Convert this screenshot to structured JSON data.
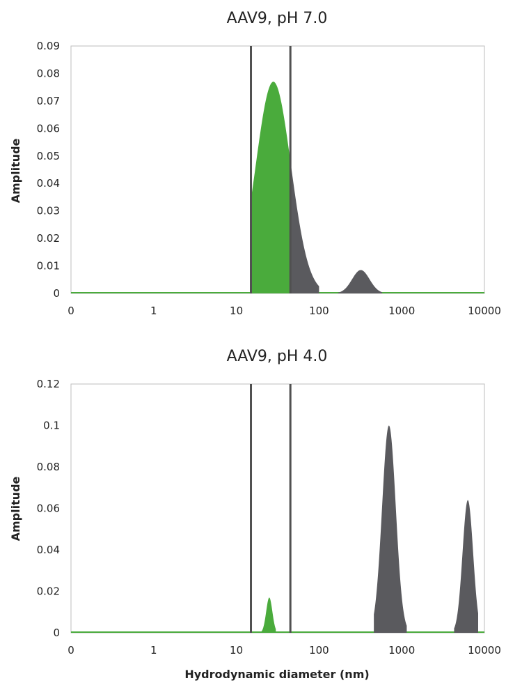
{
  "colors": {
    "green": "#4aab3c",
    "gray": "#5a5a5e",
    "axis": "#bdbdbd",
    "divider": "#505050"
  },
  "chart_data": [
    {
      "type": "area",
      "title": "AAV9, pH 7.0",
      "ylabel": "Amplitude",
      "xlabel": "",
      "x_scale": "log",
      "xlim": [
        0.1,
        10000
      ],
      "x_ticks": [
        "0",
        "1",
        "10",
        "100",
        "1000",
        "10000"
      ],
      "ylim": [
        0,
        0.09
      ],
      "y_ticks": [
        "0",
        "0.01",
        "0.02",
        "0.03",
        "0.04",
        "0.05",
        "0.06",
        "0.07",
        "0.08",
        "0.09"
      ],
      "grid": false,
      "vertical_lines_x": [
        15,
        45
      ],
      "peaks": [
        {
          "color": "green",
          "center": 28,
          "amplitude": 0.077,
          "range": [
            15,
            45
          ]
        },
        {
          "color": "gray",
          "center": 28,
          "amplitude": 0.077,
          "range": [
            45,
            100
          ]
        },
        {
          "color": "gray",
          "center": 320,
          "amplitude": 0.0085,
          "range": [
            170,
            580
          ]
        }
      ]
    },
    {
      "type": "area",
      "title": "AAV9, pH 4.0",
      "ylabel": "Amplitude",
      "xlabel": "Hydrodynamic diameter (nm)",
      "x_scale": "log",
      "xlim": [
        0.1,
        10000
      ],
      "x_ticks": [
        "0",
        "1",
        "10",
        "100",
        "1000",
        "10000"
      ],
      "ylim": [
        0,
        0.12
      ],
      "y_ticks": [
        "0",
        "0.02",
        "0.04",
        "0.06",
        "0.08",
        "0.1",
        "0.12"
      ],
      "grid": false,
      "vertical_lines_x": [
        15,
        45
      ],
      "peaks": [
        {
          "color": "green",
          "center": 25,
          "amplitude": 0.017,
          "range": [
            20,
            30
          ]
        },
        {
          "color": "gray",
          "center": 700,
          "amplitude": 0.1,
          "range": [
            460,
            1150
          ]
        },
        {
          "color": "gray",
          "center": 6300,
          "amplitude": 0.064,
          "range": [
            4300,
            8400
          ]
        }
      ]
    }
  ]
}
